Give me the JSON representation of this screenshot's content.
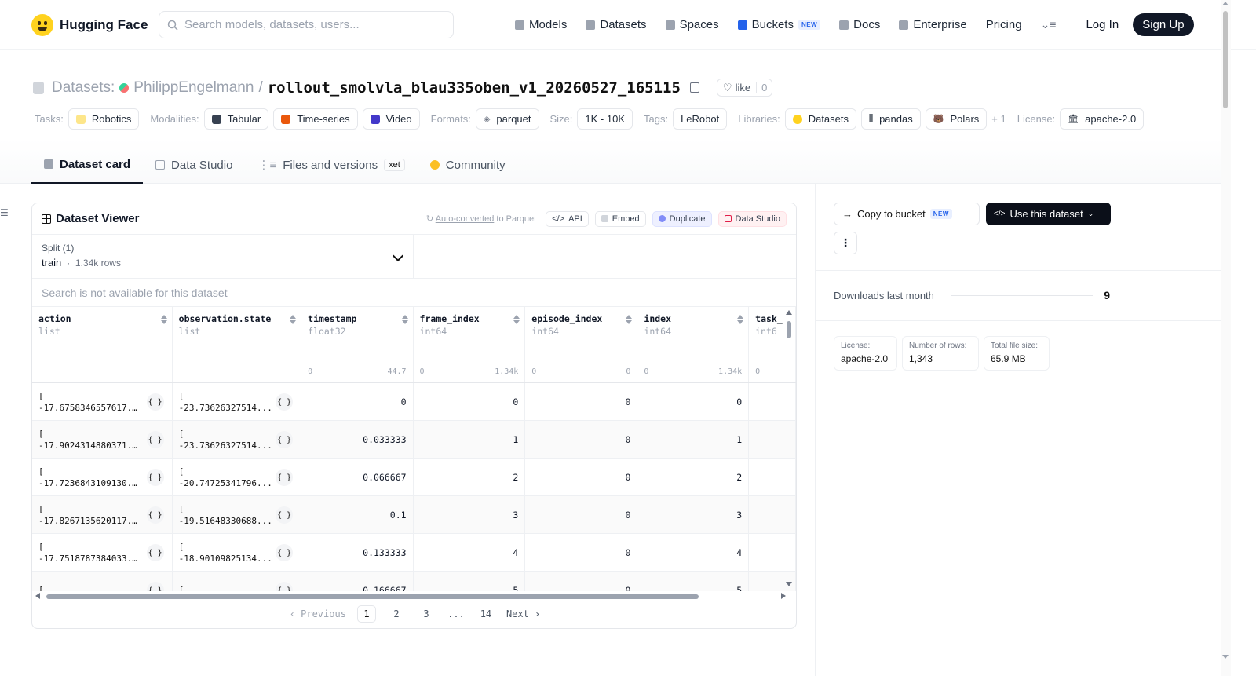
{
  "header": {
    "brand": "Hugging Face",
    "search_placeholder": "Search models, datasets, users...",
    "nav": [
      {
        "label": "Models",
        "icon": "cube-icon"
      },
      {
        "label": "Datasets",
        "icon": "database-icon"
      },
      {
        "label": "Spaces",
        "icon": "grid-icon"
      },
      {
        "label": "Buckets",
        "icon": "bucket-icon",
        "badge": "NEW"
      },
      {
        "label": "Docs",
        "icon": "book-icon"
      },
      {
        "label": "Enterprise",
        "icon": "enterprise-icon"
      },
      {
        "label": "Pricing"
      }
    ],
    "login": "Log In",
    "signup": "Sign Up"
  },
  "repo": {
    "prefix": "Datasets:",
    "owner": "PhilippEngelmann",
    "sep": "/",
    "name": "rollout_smolvla_blau335oben_v1_20260527_165115",
    "like_label": "like",
    "like_count": "0"
  },
  "tags": {
    "tasks_label": "Tasks:",
    "tasks": [
      "Robotics"
    ],
    "modalities_label": "Modalities:",
    "modalities": [
      "Tabular",
      "Time-series",
      "Video"
    ],
    "formats_label": "Formats:",
    "formats": [
      "parquet"
    ],
    "size_label": "Size:",
    "size": "1K - 10K",
    "tags_label": "Tags:",
    "tag_values": [
      "LeRobot"
    ],
    "libraries_label": "Libraries:",
    "libraries": [
      "Datasets",
      "pandas",
      "Polars"
    ],
    "libraries_more": "+ 1",
    "license_label": "License:",
    "license": "apache-2.0"
  },
  "tabs": [
    {
      "label": "Dataset card",
      "active": true
    },
    {
      "label": "Data Studio"
    },
    {
      "label": "Files and versions",
      "badge": "xet"
    },
    {
      "label": "Community"
    }
  ],
  "viewer": {
    "title": "Dataset Viewer",
    "auto_converted": "Auto-converted",
    "auto_suffix": " to Parquet",
    "api": "API",
    "embed": "Embed",
    "duplicate": "Duplicate",
    "data_studio": "Data Studio",
    "split_label": "Split (1)",
    "split_value": "train",
    "split_rows": "1.34k rows",
    "search_na": "Search is not available for this dataset",
    "columns": [
      {
        "name": "action",
        "type": "list"
      },
      {
        "name": "observation.state",
        "type": "list"
      },
      {
        "name": "timestamp",
        "type": "float32",
        "min": "0",
        "max": "44.7"
      },
      {
        "name": "frame_index",
        "type": "int64",
        "min": "0",
        "max": "1.34k"
      },
      {
        "name": "episode_index",
        "type": "int64",
        "min": "0",
        "max": "0"
      },
      {
        "name": "index",
        "type": "int64",
        "min": "0",
        "max": "1.34k"
      },
      {
        "name": "task_",
        "type": "int6",
        "min": "0",
        "max": ""
      }
    ],
    "rows": [
      {
        "action": "-17.6758346557617...",
        "state": "-23.73626327514...",
        "timestamp": "0",
        "frame_index": "0",
        "episode_index": "0",
        "index": "0"
      },
      {
        "action": "-17.9024314880371...",
        "state": "-23.73626327514...",
        "timestamp": "0.033333",
        "frame_index": "1",
        "episode_index": "0",
        "index": "1"
      },
      {
        "action": "-17.7236843109130...",
        "state": "-20.74725341796...",
        "timestamp": "0.066667",
        "frame_index": "2",
        "episode_index": "0",
        "index": "2"
      },
      {
        "action": "-17.8267135620117...",
        "state": "-19.51648330688...",
        "timestamp": "0.1",
        "frame_index": "3",
        "episode_index": "0",
        "index": "3"
      },
      {
        "action": "-17.7518787384033...",
        "state": "-18.90109825134...",
        "timestamp": "0.133333",
        "frame_index": "4",
        "episode_index": "0",
        "index": "4"
      },
      {
        "action": "",
        "state": "",
        "timestamp": "0.166667",
        "frame_index": "5",
        "episode_index": "0",
        "index": "5"
      }
    ],
    "list_open": "[",
    "obj_glyph": "{ }",
    "pager": {
      "prev": "‹ Previous",
      "pages": [
        "1",
        "2",
        "3",
        "...",
        "14"
      ],
      "next": "Next ›"
    }
  },
  "sidebar": {
    "copy_bucket": "Copy to bucket",
    "copy_badge": "NEW",
    "use_dataset": "Use this dataset",
    "downloads_label": "Downloads last month",
    "downloads_value": "9",
    "cards": [
      {
        "k": "License:",
        "v": "apache-2.0"
      },
      {
        "k": "Number of rows:",
        "v": "1,343"
      },
      {
        "k": "Total file size:",
        "v": "65.9 MB"
      }
    ]
  }
}
